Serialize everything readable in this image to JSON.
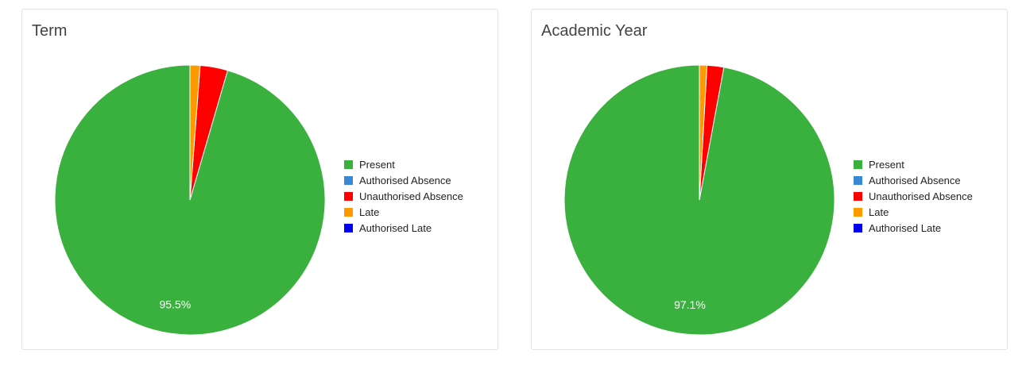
{
  "chart_data": [
    {
      "type": "pie",
      "title": "Term",
      "categories": [
        "Present",
        "Authorised Absence",
        "Unauthorised Absence",
        "Late",
        "Authorised Late"
      ],
      "values": [
        95.5,
        0,
        3.3,
        1.2,
        0
      ],
      "colors": [
        "#3ab03e",
        "#3a87d4",
        "#ff0000",
        "#ff9900",
        "#0000ee"
      ],
      "data_labels": [
        "95.5%",
        "",
        "",
        "",
        ""
      ],
      "legend_position": "right"
    },
    {
      "type": "pie",
      "title": "Academic Year",
      "categories": [
        "Present",
        "Authorised Absence",
        "Unauthorised Absence",
        "Late",
        "Authorised Late"
      ],
      "values": [
        97.1,
        0,
        2.0,
        0.9,
        0
      ],
      "colors": [
        "#3ab03e",
        "#3a87d4",
        "#ff0000",
        "#ff9900",
        "#0000ee"
      ],
      "data_labels": [
        "97.1%",
        "",
        "",
        "",
        ""
      ],
      "legend_position": "right"
    }
  ]
}
